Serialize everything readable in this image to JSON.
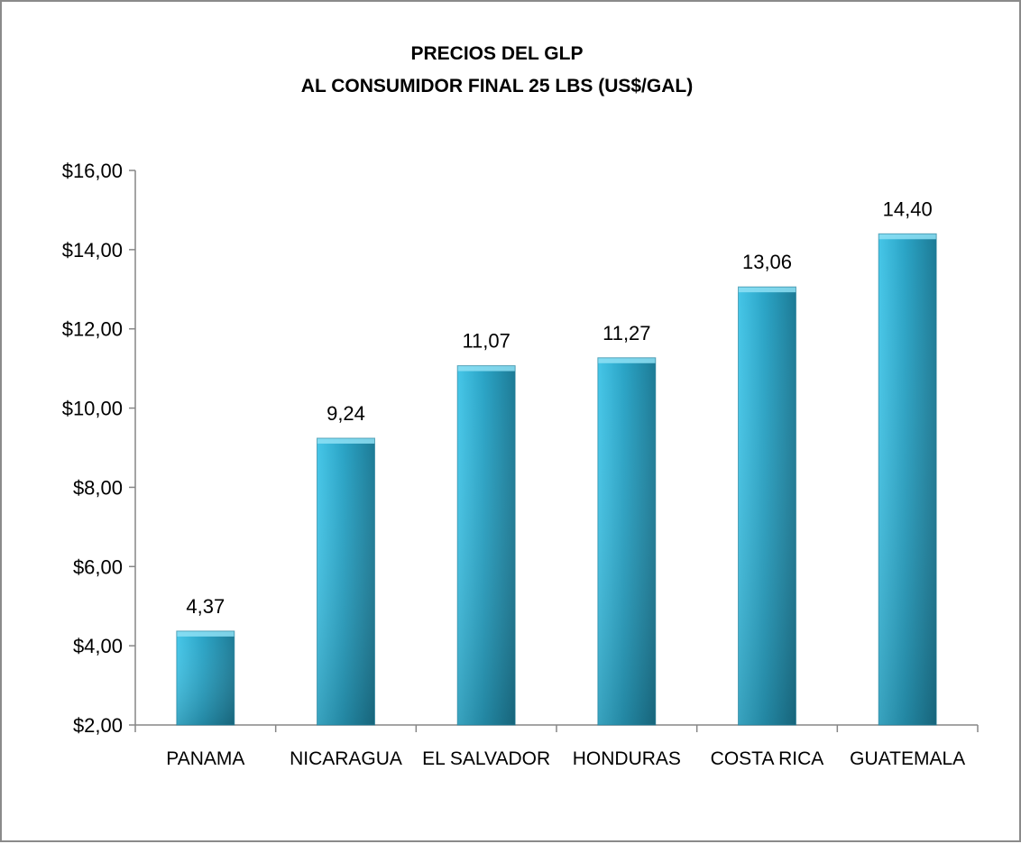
{
  "chart_data": {
    "type": "bar",
    "title_lines": [
      "PRECIOS DEL GLP",
      "AL CONSUMIDOR FINAL  25 LBS (US$/GAL)"
    ],
    "categories": [
      "PANAMA",
      "NICARAGUA",
      "EL SALVADOR",
      "HONDURAS",
      "COSTA RICA",
      "GUATEMALA"
    ],
    "values": [
      4.37,
      9.24,
      11.07,
      11.27,
      13.06,
      14.4
    ],
    "data_labels": [
      "4,37",
      "9,24",
      "11,07",
      "11,27",
      "13,06",
      "14,40"
    ],
    "y_ticks": [
      2,
      4,
      6,
      8,
      10,
      12,
      14,
      16
    ],
    "y_tick_labels": [
      "$2,00",
      "$4,00",
      "$6,00",
      "$8,00",
      "$10,00",
      "$12,00",
      "$14,00",
      "$16,00"
    ],
    "ylim": [
      2,
      16
    ],
    "xlabel": "",
    "ylabel": "",
    "grid": false,
    "legend": "none",
    "colors": {
      "bar_light": "#45c6e8",
      "bar_mid": "#2aa4c6",
      "bar_dark": "#1c7a95",
      "axis": "#868686",
      "frame": "#8a8a8a"
    }
  }
}
